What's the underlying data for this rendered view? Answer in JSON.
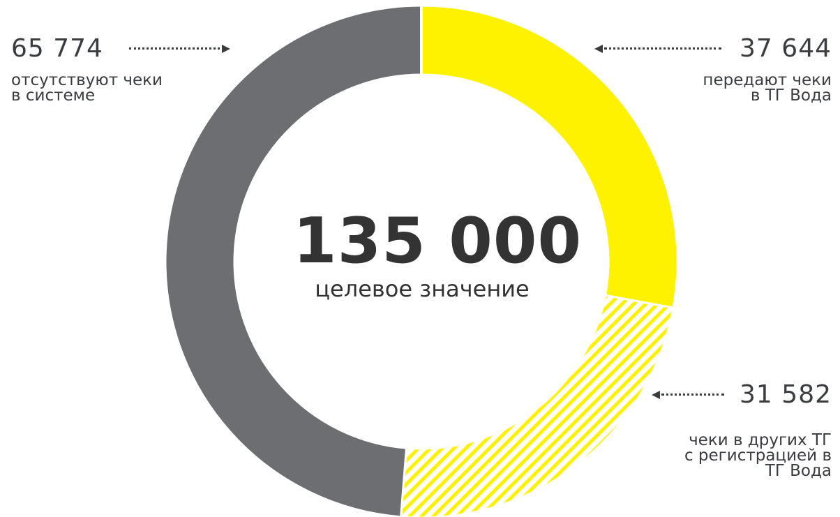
{
  "chart_data": {
    "type": "pie",
    "title": "",
    "total": {
      "value": "135 000",
      "label": "целевое значение"
    },
    "series": [
      {
        "value": 65774,
        "value_label": "65 774",
        "description": "отсутствуют чеки\nв системе",
        "color": "#6d6e72",
        "pattern": "solid"
      },
      {
        "value": 37644,
        "value_label": "37 644",
        "description": "передают чеки\nв ТГ Вода",
        "color": "#fff200",
        "pattern": "solid"
      },
      {
        "value": 31582,
        "value_label": "31 582",
        "description": "чеки в других ТГ\nс регистрацией в\nТГ Вода",
        "color": "#fff200",
        "pattern": "hatched"
      }
    ]
  }
}
